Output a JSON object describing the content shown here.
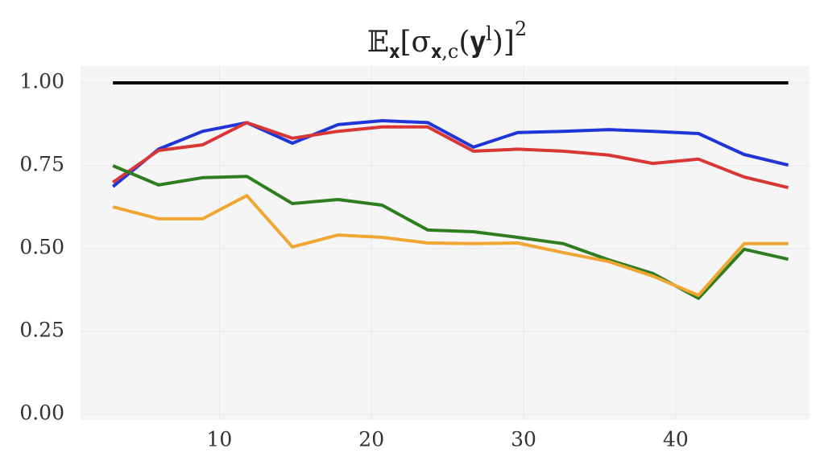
{
  "chart_data": {
    "type": "line",
    "title": [
      "𝔼",
      "𝐱",
      "[σ",
      "𝐱,c",
      "(𝐲",
      "l",
      ")]",
      "2"
    ],
    "x": [
      3,
      6,
      8.9,
      11.8,
      14.8,
      17.8,
      20.7,
      23.7,
      26.7,
      29.6,
      32.6,
      35.6,
      38.5,
      41.5,
      44.5,
      47.4
    ],
    "series": [
      {
        "color": "#000000",
        "values": [
          1,
          1,
          1,
          1,
          1,
          1,
          1,
          1,
          1,
          1,
          1,
          1,
          1,
          1,
          1,
          1
        ]
      },
      {
        "color": "#1f35d8",
        "values": [
          0.687,
          0.8,
          0.854,
          0.88,
          0.818,
          0.874,
          0.886,
          0.88,
          0.806,
          0.85,
          0.854,
          0.859,
          0.854,
          0.847,
          0.784,
          0.752
        ]
      },
      {
        "color": "#d93636",
        "values": [
          0.7,
          0.796,
          0.813,
          0.88,
          0.833,
          0.854,
          0.867,
          0.867,
          0.794,
          0.8,
          0.794,
          0.782,
          0.757,
          0.77,
          0.716,
          0.684
        ]
      },
      {
        "color": "#2f7d21",
        "values": [
          0.75,
          0.692,
          0.714,
          0.718,
          0.636,
          0.648,
          0.631,
          0.556,
          0.551,
          0.534,
          0.515,
          0.466,
          0.425,
          0.35,
          0.498,
          0.468
        ]
      },
      {
        "color": "#f0a632",
        "values": [
          0.626,
          0.59,
          0.59,
          0.66,
          0.505,
          0.541,
          0.534,
          0.517,
          0.515,
          0.517,
          0.488,
          0.461,
          0.417,
          0.359,
          0.515,
          0.515
        ]
      }
    ],
    "xlim": [
      0.87,
      48.8
    ],
    "ylim": [
      0,
      1
    ],
    "xticks": [
      10,
      20,
      30,
      40
    ],
    "yticks": [
      {
        "value": 0,
        "label": "0.00"
      },
      {
        "value": 0.25,
        "label": "0.25"
      },
      {
        "value": 0.5,
        "label": "0.50"
      },
      {
        "value": 0.75,
        "label": "0.75"
      },
      {
        "value": 1,
        "label": "1.00"
      }
    ],
    "grid": true
  }
}
